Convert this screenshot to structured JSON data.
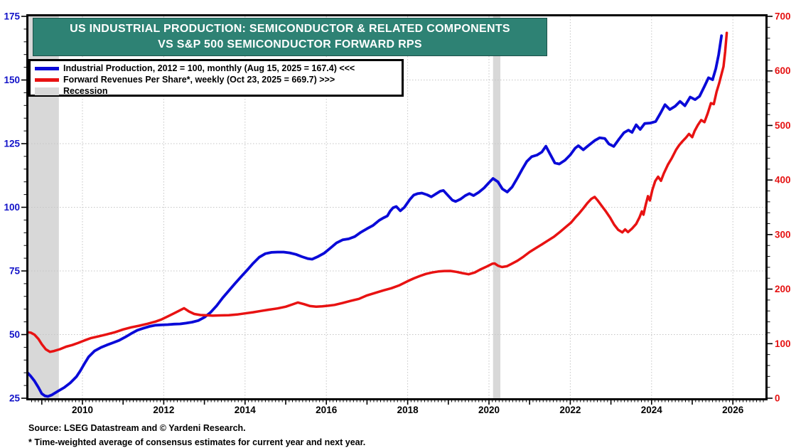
{
  "title": {
    "line1": "US INDUSTRIAL PRODUCTION: SEMICONDUCTOR & RELATED COMPONENTS",
    "line2": "VS S&P 500 SEMICONDUCTOR FORWARD RPS",
    "bg_color": "#2e8274",
    "text_color": "#ffffff"
  },
  "legend": {
    "items": [
      {
        "label": "Industrial Production, 2012 = 100, monthly (Aug 15, 2025 = 167.4) <<<",
        "swatch": "line",
        "color": "#0a0ad8"
      },
      {
        "label": "Forward Revenues Per Share*, weekly (Oct 23, 2025 = 669.7) >>>",
        "swatch": "line",
        "color": "#e81212"
      },
      {
        "label": "Recession",
        "swatch": "area",
        "color": "#d8d8d8"
      }
    ]
  },
  "footer": {
    "source": "Source: LSEG Datastream and © Yardeni Research.",
    "footnote": "* Time-weighted average of consensus estimates for current year and next year."
  },
  "chart_data": {
    "type": "line",
    "title": "US Industrial Production: Semiconductor & Related Components vs S&P 500 Semiconductor Forward RPS",
    "x_axis": {
      "range": [
        2008.65,
        2026.84
      ],
      "tick_years": [
        2010,
        2012,
        2014,
        2016,
        2018,
        2020,
        2022,
        2024,
        2026
      ],
      "minor_ticks": "monthly",
      "grid": true
    },
    "left_axis": {
      "range": [
        25,
        175
      ],
      "ticks": [
        25,
        50,
        75,
        100,
        125,
        150,
        175
      ],
      "minor_interval": 5,
      "gridline_values": [
        50,
        75,
        100,
        125,
        150
      ],
      "color": "#1212c8"
    },
    "right_axis": {
      "range": [
        0,
        700
      ],
      "ticks": [
        0,
        100,
        200,
        300,
        400,
        500,
        600,
        700
      ],
      "minor_interval": 20,
      "color": "#e51111"
    },
    "grid_color": "#c5c5c5",
    "recession_color": "#d8d8d8",
    "recession_bands": [
      [
        2008.65,
        2009.42
      ],
      [
        2020.1,
        2020.28
      ]
    ],
    "series": [
      {
        "name": "Industrial Production",
        "axis": "left",
        "color": "#0a0ad8",
        "width": 3.8,
        "data": [
          [
            2008.65,
            35
          ],
          [
            2008.73,
            33.6
          ],
          [
            2008.82,
            31.8
          ],
          [
            2008.92,
            29.2
          ],
          [
            2009.0,
            26.8
          ],
          [
            2009.08,
            25.9
          ],
          [
            2009.15,
            25.7
          ],
          [
            2009.25,
            26.3
          ],
          [
            2009.4,
            27.8
          ],
          [
            2009.55,
            29.2
          ],
          [
            2009.7,
            31
          ],
          [
            2009.85,
            33.4
          ],
          [
            2009.95,
            35.8
          ],
          [
            2010.05,
            38.6
          ],
          [
            2010.15,
            41.2
          ],
          [
            2010.3,
            43.6
          ],
          [
            2010.45,
            44.9
          ],
          [
            2010.6,
            45.9
          ],
          [
            2010.75,
            46.8
          ],
          [
            2010.9,
            47.7
          ],
          [
            2011.05,
            49
          ],
          [
            2011.2,
            50.4
          ],
          [
            2011.35,
            51.7
          ],
          [
            2011.5,
            52.5
          ],
          [
            2011.65,
            53.2
          ],
          [
            2011.8,
            53.7
          ],
          [
            2011.95,
            53.8
          ],
          [
            2012.1,
            53.9
          ],
          [
            2012.25,
            54.1
          ],
          [
            2012.4,
            54.2
          ],
          [
            2012.55,
            54.5
          ],
          [
            2012.7,
            54.9
          ],
          [
            2012.85,
            55.5
          ],
          [
            2013.0,
            56.8
          ],
          [
            2013.15,
            58.7
          ],
          [
            2013.3,
            61.3
          ],
          [
            2013.45,
            64.4
          ],
          [
            2013.6,
            67.2
          ],
          [
            2013.75,
            70
          ],
          [
            2013.9,
            72.7
          ],
          [
            2014.05,
            75.3
          ],
          [
            2014.2,
            78
          ],
          [
            2014.35,
            80.4
          ],
          [
            2014.5,
            81.8
          ],
          [
            2014.65,
            82.3
          ],
          [
            2014.8,
            82.4
          ],
          [
            2014.95,
            82.4
          ],
          [
            2015.1,
            82.1
          ],
          [
            2015.25,
            81.5
          ],
          [
            2015.4,
            80.6
          ],
          [
            2015.55,
            79.8
          ],
          [
            2015.65,
            79.6
          ],
          [
            2015.8,
            80.7
          ],
          [
            2015.95,
            82
          ],
          [
            2016.1,
            84
          ],
          [
            2016.25,
            86
          ],
          [
            2016.4,
            87.2
          ],
          [
            2016.55,
            87.6
          ],
          [
            2016.7,
            88.5
          ],
          [
            2016.85,
            90.2
          ],
          [
            2017.0,
            91.6
          ],
          [
            2017.15,
            92.9
          ],
          [
            2017.3,
            94.9
          ],
          [
            2017.4,
            95.8
          ],
          [
            2017.5,
            96.6
          ],
          [
            2017.57,
            98.5
          ],
          [
            2017.64,
            99.8
          ],
          [
            2017.72,
            100.3
          ],
          [
            2017.82,
            98.6
          ],
          [
            2017.92,
            100
          ],
          [
            2018.05,
            103
          ],
          [
            2018.15,
            104.8
          ],
          [
            2018.25,
            105.4
          ],
          [
            2018.35,
            105.6
          ],
          [
            2018.48,
            104.9
          ],
          [
            2018.58,
            104.1
          ],
          [
            2018.7,
            105.3
          ],
          [
            2018.8,
            106.3
          ],
          [
            2018.88,
            106.6
          ],
          [
            2019.0,
            104.5
          ],
          [
            2019.1,
            102.8
          ],
          [
            2019.18,
            102.3
          ],
          [
            2019.3,
            103.2
          ],
          [
            2019.42,
            104.6
          ],
          [
            2019.52,
            105.4
          ],
          [
            2019.62,
            104.6
          ],
          [
            2019.75,
            105.9
          ],
          [
            2019.88,
            107.6
          ],
          [
            2020.0,
            109.7
          ],
          [
            2020.1,
            111.3
          ],
          [
            2020.22,
            110
          ],
          [
            2020.33,
            107.2
          ],
          [
            2020.45,
            106
          ],
          [
            2020.57,
            108
          ],
          [
            2020.7,
            111.5
          ],
          [
            2020.82,
            115
          ],
          [
            2020.93,
            118
          ],
          [
            2021.05,
            119.9
          ],
          [
            2021.18,
            120.5
          ],
          [
            2021.3,
            121.7
          ],
          [
            2021.4,
            124
          ],
          [
            2021.5,
            121
          ],
          [
            2021.62,
            117.4
          ],
          [
            2021.73,
            117
          ],
          [
            2021.87,
            118.5
          ],
          [
            2022.0,
            120.6
          ],
          [
            2022.12,
            123.2
          ],
          [
            2022.2,
            124.2
          ],
          [
            2022.32,
            122.6
          ],
          [
            2022.45,
            124.3
          ],
          [
            2022.6,
            126.2
          ],
          [
            2022.72,
            127.3
          ],
          [
            2022.85,
            127
          ],
          [
            2022.95,
            124.9
          ],
          [
            2023.07,
            123.9
          ],
          [
            2023.2,
            126.8
          ],
          [
            2023.32,
            129.3
          ],
          [
            2023.43,
            130.3
          ],
          [
            2023.52,
            129.4
          ],
          [
            2023.62,
            132.4
          ],
          [
            2023.72,
            130.6
          ],
          [
            2023.83,
            132.9
          ],
          [
            2023.97,
            133.1
          ],
          [
            2024.1,
            133.7
          ],
          [
            2024.22,
            137
          ],
          [
            2024.33,
            140.3
          ],
          [
            2024.45,
            138.4
          ],
          [
            2024.58,
            139.7
          ],
          [
            2024.7,
            141.6
          ],
          [
            2024.82,
            139.9
          ],
          [
            2024.95,
            143.3
          ],
          [
            2025.07,
            142.3
          ],
          [
            2025.18,
            143.6
          ],
          [
            2025.3,
            147.5
          ],
          [
            2025.4,
            150.9
          ],
          [
            2025.5,
            150.1
          ],
          [
            2025.58,
            154.5
          ],
          [
            2025.65,
            160
          ],
          [
            2025.72,
            167.4
          ]
        ]
      },
      {
        "name": "Forward Revenues Per Share",
        "axis": "right",
        "color": "#e81212",
        "width": 3.5,
        "data": [
          [
            2008.65,
            121
          ],
          [
            2008.73,
            120.2
          ],
          [
            2008.82,
            116.5
          ],
          [
            2008.92,
            108.5
          ],
          [
            2009.0,
            99
          ],
          [
            2009.1,
            89.5
          ],
          [
            2009.2,
            85
          ],
          [
            2009.3,
            86.5
          ],
          [
            2009.45,
            90
          ],
          [
            2009.6,
            94.5
          ],
          [
            2009.75,
            97.5
          ],
          [
            2009.9,
            101.5
          ],
          [
            2010.05,
            106
          ],
          [
            2010.2,
            110
          ],
          [
            2010.4,
            113.5
          ],
          [
            2010.6,
            117
          ],
          [
            2010.8,
            121
          ],
          [
            2011.0,
            126
          ],
          [
            2011.2,
            130
          ],
          [
            2011.4,
            133
          ],
          [
            2011.6,
            136.5
          ],
          [
            2011.8,
            140.5
          ],
          [
            2011.95,
            144.5
          ],
          [
            2012.1,
            150
          ],
          [
            2012.25,
            155.5
          ],
          [
            2012.38,
            160.5
          ],
          [
            2012.5,
            165
          ],
          [
            2012.62,
            159
          ],
          [
            2012.75,
            154.5
          ],
          [
            2012.9,
            152.5
          ],
          [
            2013.05,
            152
          ],
          [
            2013.2,
            151.3
          ],
          [
            2013.4,
            151.8
          ],
          [
            2013.6,
            152.3
          ],
          [
            2013.8,
            153.4
          ],
          [
            2014.0,
            155.5
          ],
          [
            2014.2,
            157.6
          ],
          [
            2014.4,
            160.1
          ],
          [
            2014.6,
            162.4
          ],
          [
            2014.8,
            164.6
          ],
          [
            2015.0,
            167.8
          ],
          [
            2015.15,
            171.6
          ],
          [
            2015.3,
            175.5
          ],
          [
            2015.45,
            172.4
          ],
          [
            2015.6,
            169
          ],
          [
            2015.75,
            167.9
          ],
          [
            2015.9,
            168.4
          ],
          [
            2016.05,
            169.6
          ],
          [
            2016.2,
            171
          ],
          [
            2016.4,
            174.5
          ],
          [
            2016.6,
            178.5
          ],
          [
            2016.8,
            182.1
          ],
          [
            2017.0,
            188.5
          ],
          [
            2017.2,
            193
          ],
          [
            2017.4,
            197.6
          ],
          [
            2017.6,
            201.7
          ],
          [
            2017.8,
            207.1
          ],
          [
            2018.0,
            214.6
          ],
          [
            2018.15,
            219.6
          ],
          [
            2018.3,
            224.1
          ],
          [
            2018.45,
            227.9
          ],
          [
            2018.6,
            230.5
          ],
          [
            2018.75,
            232.3
          ],
          [
            2018.9,
            233.2
          ],
          [
            2019.05,
            233.3
          ],
          [
            2019.2,
            231.6
          ],
          [
            2019.35,
            229.3
          ],
          [
            2019.5,
            227.2
          ],
          [
            2019.65,
            230.5
          ],
          [
            2019.8,
            236.5
          ],
          [
            2019.95,
            241.5
          ],
          [
            2020.08,
            246.5
          ],
          [
            2020.14,
            247
          ],
          [
            2020.22,
            243
          ],
          [
            2020.32,
            240.5
          ],
          [
            2020.44,
            242
          ],
          [
            2020.56,
            246.5
          ],
          [
            2020.7,
            252
          ],
          [
            2020.85,
            259.5
          ],
          [
            2021.0,
            268
          ],
          [
            2021.15,
            275
          ],
          [
            2021.3,
            282
          ],
          [
            2021.45,
            289
          ],
          [
            2021.6,
            296
          ],
          [
            2021.75,
            305
          ],
          [
            2021.9,
            314.5
          ],
          [
            2022.02,
            322
          ],
          [
            2022.12,
            331
          ],
          [
            2022.22,
            339
          ],
          [
            2022.32,
            348
          ],
          [
            2022.42,
            357.5
          ],
          [
            2022.52,
            365.5
          ],
          [
            2022.6,
            369
          ],
          [
            2022.68,
            362
          ],
          [
            2022.78,
            352
          ],
          [
            2022.88,
            342
          ],
          [
            2022.98,
            331
          ],
          [
            2023.08,
            318
          ],
          [
            2023.18,
            308.5
          ],
          [
            2023.28,
            304
          ],
          [
            2023.35,
            309.5
          ],
          [
            2023.42,
            304.5
          ],
          [
            2023.52,
            311
          ],
          [
            2023.62,
            319.5
          ],
          [
            2023.7,
            331
          ],
          [
            2023.76,
            342.5
          ],
          [
            2023.8,
            336.5
          ],
          [
            2023.86,
            356
          ],
          [
            2023.91,
            370.5
          ],
          [
            2023.96,
            362.5
          ],
          [
            2024.02,
            382
          ],
          [
            2024.09,
            398
          ],
          [
            2024.16,
            406
          ],
          [
            2024.23,
            398.5
          ],
          [
            2024.3,
            412
          ],
          [
            2024.4,
            428
          ],
          [
            2024.5,
            440.5
          ],
          [
            2024.6,
            455
          ],
          [
            2024.68,
            464
          ],
          [
            2024.76,
            471
          ],
          [
            2024.85,
            478
          ],
          [
            2024.92,
            484.5
          ],
          [
            2025.0,
            478.5
          ],
          [
            2025.06,
            490
          ],
          [
            2025.14,
            501
          ],
          [
            2025.22,
            510
          ],
          [
            2025.3,
            506
          ],
          [
            2025.38,
            522
          ],
          [
            2025.46,
            541
          ],
          [
            2025.53,
            539
          ],
          [
            2025.6,
            562
          ],
          [
            2025.66,
            577
          ],
          [
            2025.72,
            594
          ],
          [
            2025.77,
            608
          ],
          [
            2025.81,
            635
          ],
          [
            2025.85,
            669.7
          ]
        ]
      }
    ]
  }
}
